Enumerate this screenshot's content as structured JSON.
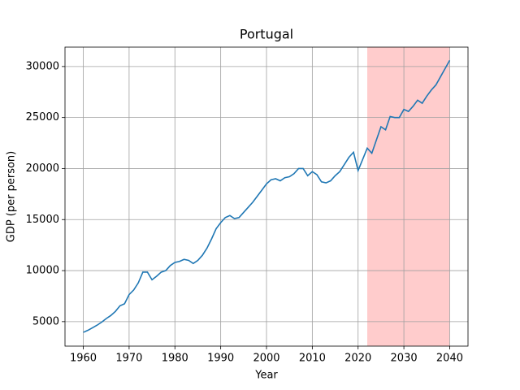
{
  "chart_data": {
    "type": "line",
    "title": "Portugal",
    "x_label": "Year",
    "y_label": "GDP (per person)",
    "x": [
      1960,
      1961,
      1962,
      1963,
      1964,
      1965,
      1966,
      1967,
      1968,
      1969,
      1970,
      1971,
      1972,
      1973,
      1974,
      1975,
      1976,
      1977,
      1978,
      1979,
      1980,
      1981,
      1982,
      1983,
      1984,
      1985,
      1986,
      1987,
      1988,
      1989,
      1990,
      1991,
      1992,
      1993,
      1994,
      1995,
      1996,
      1997,
      1998,
      1999,
      2000,
      2001,
      2002,
      2003,
      2004,
      2005,
      2006,
      2007,
      2008,
      2009,
      2010,
      2011,
      2012,
      2013,
      2014,
      2015,
      2016,
      2017,
      2018,
      2019,
      2020,
      2021,
      2022,
      2023,
      2024,
      2025,
      2026,
      2027,
      2028,
      2029,
      2030,
      2031,
      2032,
      2033,
      2034,
      2035,
      2036,
      2037,
      2038,
      2039,
      2040
    ],
    "values": [
      3950,
      4150,
      4400,
      4650,
      4950,
      5300,
      5600,
      6000,
      6550,
      6750,
      7650,
      8100,
      8800,
      9850,
      9850,
      9100,
      9450,
      9850,
      10000,
      10500,
      10800,
      10900,
      11100,
      11000,
      10700,
      11000,
      11500,
      12200,
      13100,
      14100,
      14700,
      15200,
      15400,
      15100,
      15200,
      15700,
      16200,
      16700,
      17300,
      17900,
      18500,
      18900,
      19000,
      18800,
      19100,
      19200,
      19500,
      20000,
      20000,
      19300,
      19700,
      19400,
      18700,
      18600,
      18800,
      19300,
      19700,
      20400,
      21100,
      21600,
      19800,
      20900,
      22000,
      21500,
      22800,
      24100,
      23800,
      25100,
      25000,
      25000,
      25800,
      25600,
      26100,
      26700,
      26400,
      27100,
      27700,
      28200,
      29000,
      29800,
      30600
    ],
    "color": "#1f77b4",
    "highlight_x": [
      2022,
      2040
    ],
    "highlight_color": "#ffcccc",
    "xlim": [
      1956,
      2044
    ],
    "xticks": [
      1960,
      1970,
      1980,
      1990,
      2000,
      2010,
      2020,
      2030,
      2040
    ],
    "ylim": [
      2600,
      31900
    ],
    "yticks": [
      5000,
      10000,
      15000,
      20000,
      25000,
      30000
    ],
    "grid": true
  }
}
